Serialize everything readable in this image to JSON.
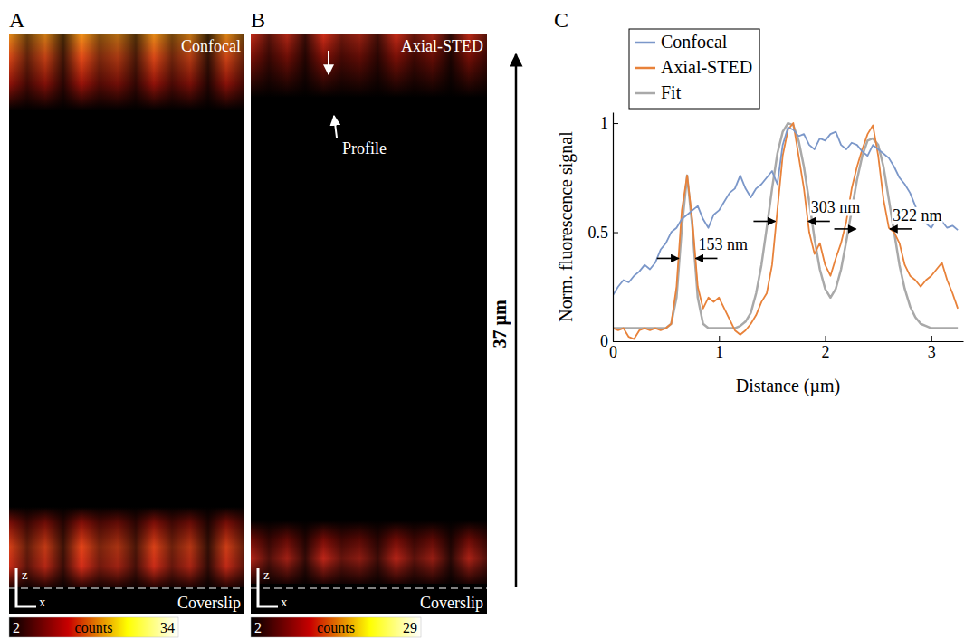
{
  "chart_data": [
    {
      "type": "image",
      "panel": "A",
      "title": "Confocal",
      "coverslip_label": "Coverslip",
      "axes": [
        "z",
        "x"
      ],
      "colorbar": {
        "label": "counts",
        "range": [
          2,
          34
        ],
        "ticks": [
          2,
          34
        ]
      }
    },
    {
      "type": "image",
      "panel": "B",
      "title": "Axial-STED",
      "coverslip_label": "Coverslip",
      "axes": [
        "z",
        "x"
      ],
      "colorbar": {
        "label": "counts",
        "range": [
          2,
          29
        ],
        "ticks": [
          2,
          29
        ]
      },
      "annotations": [
        {
          "text": "Profile"
        }
      ],
      "scale_arrow": "37 µm"
    },
    {
      "type": "line",
      "panel": "C",
      "xlabel": "Distance (µm)",
      "ylabel": "Norm. fluorescence signal",
      "x": [
        0,
        0.05,
        0.1,
        0.15,
        0.2,
        0.25,
        0.3,
        0.35,
        0.4,
        0.45,
        0.5,
        0.55,
        0.6,
        0.65,
        0.7,
        0.75,
        0.8,
        0.85,
        0.9,
        0.95,
        1.0,
        1.05,
        1.1,
        1.15,
        1.2,
        1.25,
        1.3,
        1.35,
        1.4,
        1.45,
        1.5,
        1.55,
        1.6,
        1.65,
        1.7,
        1.75,
        1.8,
        1.85,
        1.9,
        1.95,
        2.0,
        2.05,
        2.1,
        2.15,
        2.2,
        2.25,
        2.3,
        2.35,
        2.4,
        2.45,
        2.5,
        2.55,
        2.6,
        2.65,
        2.7,
        2.75,
        2.8,
        2.85,
        2.9,
        2.95,
        3.0,
        3.05,
        3.1,
        3.15,
        3.2,
        3.25
      ],
      "series": [
        {
          "name": "Confocal",
          "color": "#7b97c9",
          "values": [
            0.21,
            0.25,
            0.28,
            0.27,
            0.3,
            0.32,
            0.35,
            0.33,
            0.36,
            0.42,
            0.45,
            0.5,
            0.52,
            0.56,
            0.58,
            0.6,
            0.62,
            0.56,
            0.52,
            0.58,
            0.6,
            0.64,
            0.68,
            0.7,
            0.76,
            0.7,
            0.66,
            0.7,
            0.72,
            0.75,
            0.78,
            0.72,
            0.9,
            0.98,
            0.97,
            0.94,
            0.95,
            0.9,
            0.88,
            0.93,
            0.92,
            0.95,
            0.96,
            0.9,
            0.88,
            0.91,
            0.9,
            0.87,
            0.85,
            0.9,
            0.88,
            0.86,
            0.84,
            0.8,
            0.75,
            0.72,
            0.68,
            0.62,
            0.55,
            0.54,
            0.52,
            0.56,
            0.55,
            0.52,
            0.53,
            0.51
          ]
        },
        {
          "name": "Axial-STED",
          "color": "#e8823a",
          "values": [
            0.06,
            0.05,
            0.06,
            0.02,
            0.01,
            0.05,
            0.06,
            0.05,
            0.06,
            0.05,
            0.06,
            0.08,
            0.25,
            0.6,
            0.76,
            0.55,
            0.25,
            0.15,
            0.2,
            0.18,
            0.2,
            0.15,
            0.1,
            0.05,
            0.03,
            0.05,
            0.08,
            0.12,
            0.18,
            0.22,
            0.35,
            0.6,
            0.85,
            0.97,
            1.0,
            0.85,
            0.7,
            0.5,
            0.4,
            0.45,
            0.35,
            0.3,
            0.38,
            0.45,
            0.55,
            0.7,
            0.8,
            0.88,
            0.95,
            0.99,
            0.85,
            0.65,
            0.52,
            0.5,
            0.45,
            0.35,
            0.3,
            0.28,
            0.25,
            0.28,
            0.3,
            0.33,
            0.36,
            0.28,
            0.22,
            0.15
          ]
        },
        {
          "name": "Fit",
          "color": "#a9a9a9",
          "values": [
            0.06,
            0.06,
            0.06,
            0.06,
            0.06,
            0.06,
            0.06,
            0.06,
            0.06,
            0.06,
            0.06,
            0.08,
            0.2,
            0.52,
            0.76,
            0.52,
            0.2,
            0.08,
            0.06,
            0.06,
            0.06,
            0.06,
            0.06,
            0.06,
            0.07,
            0.09,
            0.13,
            0.22,
            0.35,
            0.52,
            0.7,
            0.86,
            0.96,
            1.0,
            0.99,
            0.92,
            0.8,
            0.64,
            0.47,
            0.33,
            0.24,
            0.2,
            0.24,
            0.33,
            0.46,
            0.6,
            0.74,
            0.85,
            0.92,
            0.93,
            0.9,
            0.8,
            0.65,
            0.5,
            0.35,
            0.24,
            0.16,
            0.11,
            0.08,
            0.07,
            0.06,
            0.06,
            0.06,
            0.06,
            0.06,
            0.06
          ]
        }
      ],
      "xlim": [
        0,
        3.3
      ],
      "ylim": [
        0,
        1.05
      ],
      "xticks": [
        0,
        1,
        2,
        3
      ],
      "yticks": [
        0,
        0.5,
        1
      ],
      "legend": "top-left",
      "annotations": [
        {
          "text": "153 nm",
          "x0": 0.62,
          "x1": 0.78,
          "y": 0.38
        },
        {
          "text": "303 nm",
          "x0": 1.53,
          "x1": 1.84,
          "y": 0.55
        },
        {
          "text": "322 nm",
          "x0": 2.29,
          "x1": 2.61,
          "y": 0.515
        }
      ]
    }
  ]
}
